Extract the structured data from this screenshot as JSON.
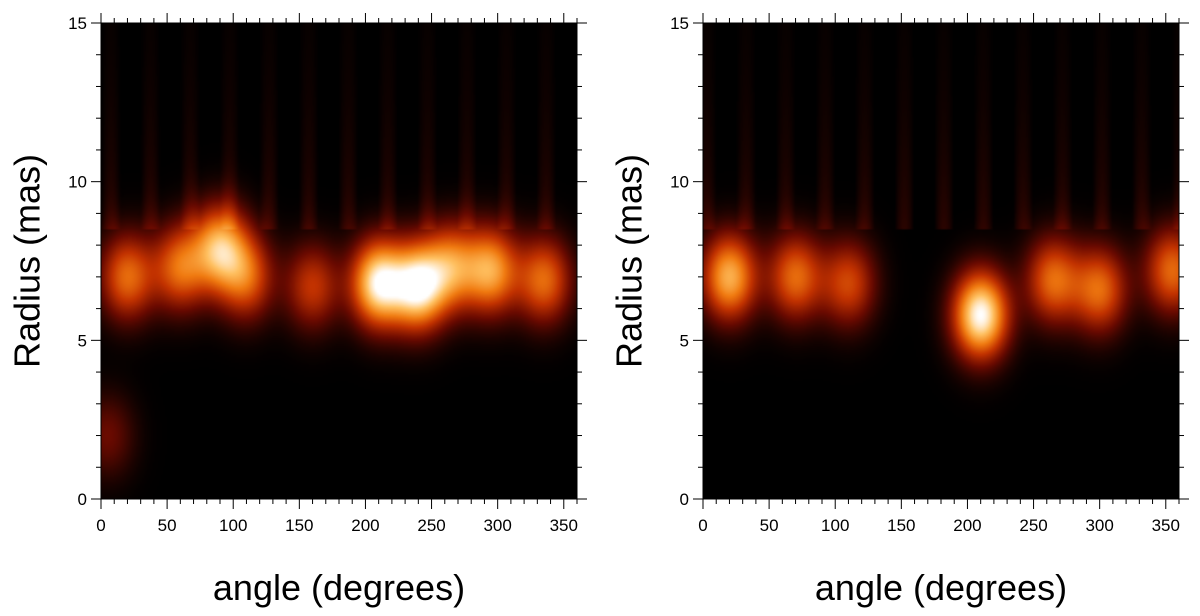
{
  "chart_data": [
    {
      "type": "heatmap",
      "title": "",
      "xlabel": "angle (degrees)",
      "ylabel": "Radius (mas)",
      "xlim": [
        0,
        360
      ],
      "ylim": [
        0,
        15
      ],
      "xticks": [
        0,
        50,
        100,
        150,
        200,
        250,
        300,
        350
      ],
      "yticks": [
        0,
        5,
        10,
        15
      ],
      "colormap": [
        "#000000",
        "#6a0a00",
        "#c23200",
        "#f07a10",
        "#ffc060",
        "#ffffff"
      ],
      "grid": false,
      "legend": "none",
      "features": [
        {
          "angle": 20,
          "radius": 7.0,
          "intensity": 0.55
        },
        {
          "angle": 60,
          "radius": 7.3,
          "intensity": 0.55
        },
        {
          "angle": 90,
          "radius": 7.9,
          "intensity": 0.75
        },
        {
          "angle": 110,
          "radius": 7.0,
          "intensity": 0.5
        },
        {
          "angle": 160,
          "radius": 6.7,
          "intensity": 0.4
        },
        {
          "angle": 210,
          "radius": 6.8,
          "intensity": 0.95
        },
        {
          "angle": 240,
          "radius": 6.7,
          "intensity": 0.95
        },
        {
          "angle": 265,
          "radius": 7.3,
          "intensity": 0.6
        },
        {
          "angle": 295,
          "radius": 7.2,
          "intensity": 0.7
        },
        {
          "angle": 335,
          "radius": 6.9,
          "intensity": 0.55
        },
        {
          "angle": 5,
          "radius": 2.0,
          "intensity": 0.2
        }
      ]
    },
    {
      "type": "heatmap",
      "title": "",
      "xlabel": "angle (degrees)",
      "ylabel": "Radius (mas)",
      "xlim": [
        0,
        360
      ],
      "ylim": [
        0,
        15
      ],
      "xticks": [
        0,
        50,
        100,
        150,
        200,
        250,
        300,
        350
      ],
      "yticks": [
        0,
        5,
        10,
        15
      ],
      "colormap": [
        "#000000",
        "#6a0a00",
        "#c23200",
        "#f07a10",
        "#ffc060",
        "#ffffff"
      ],
      "grid": false,
      "legend": "none",
      "features": [
        {
          "angle": 20,
          "radius": 7.0,
          "intensity": 0.75
        },
        {
          "angle": 70,
          "radius": 7.0,
          "intensity": 0.55
        },
        {
          "angle": 110,
          "radius": 6.8,
          "intensity": 0.45
        },
        {
          "angle": 210,
          "radius": 5.8,
          "intensity": 1.0
        },
        {
          "angle": 265,
          "radius": 6.9,
          "intensity": 0.55
        },
        {
          "angle": 300,
          "radius": 6.6,
          "intensity": 0.55
        },
        {
          "angle": 355,
          "radius": 7.2,
          "intensity": 0.55
        }
      ]
    }
  ]
}
